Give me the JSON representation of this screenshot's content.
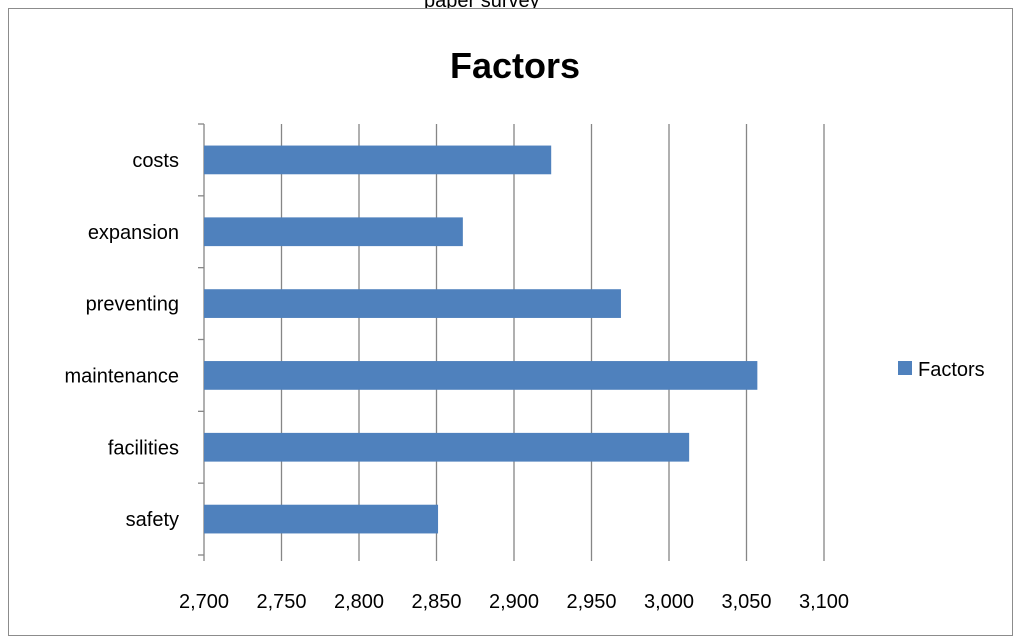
{
  "page": {
    "top_partial_text": "paper survey"
  },
  "chart_data": {
    "type": "bar",
    "orientation": "horizontal",
    "title": "Factors",
    "categories": [
      "safety",
      "facilities",
      "maintenance",
      "preventing",
      "expansion",
      "costs"
    ],
    "series": [
      {
        "name": "Factors",
        "values": [
          2.851,
          3.013,
          3.057,
          2.969,
          2.867,
          2.924
        ],
        "color": "#4f81bd"
      }
    ],
    "xlim": [
      2.7,
      3.1
    ],
    "xticks": [
      2.7,
      2.75,
      2.8,
      2.85,
      2.9,
      2.95,
      3.0,
      3.05,
      3.1
    ],
    "xtick_labels": [
      "2,700",
      "2,750",
      "2,800",
      "2,850",
      "2,900",
      "2,950",
      "3,000",
      "3,050",
      "3,100"
    ],
    "grid": true,
    "legend_position": "right",
    "xlabel": "",
    "ylabel": ""
  }
}
